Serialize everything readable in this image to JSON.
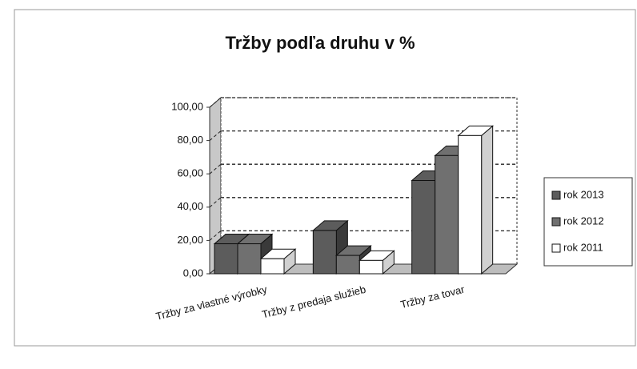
{
  "chart_data": {
    "type": "bar3d",
    "title": "Tržby podľa druhu v %",
    "categories": [
      "Tržby za vlastné výrobky",
      "Tržby z predaja služieb",
      "Tržby za tovar"
    ],
    "series": [
      {
        "name": "rok 2013",
        "color": "#5c5c5c",
        "values": [
          18,
          26,
          56
        ]
      },
      {
        "name": "rok 2012",
        "color": "#707070",
        "values": [
          18,
          11,
          71
        ]
      },
      {
        "name": "rok 2011",
        "color": "#ffffff",
        "values": [
          9,
          8,
          83
        ]
      }
    ],
    "ylim": [
      0,
      100
    ],
    "yticks": [
      {
        "value": 0,
        "label": "0,00"
      },
      {
        "value": 20,
        "label": "20,00"
      },
      {
        "value": 40,
        "label": "40,00"
      },
      {
        "value": 60,
        "label": "60,00"
      },
      {
        "value": 80,
        "label": "80,00"
      },
      {
        "value": 100,
        "label": "100,00"
      }
    ],
    "grid": true,
    "legend": "right"
  }
}
